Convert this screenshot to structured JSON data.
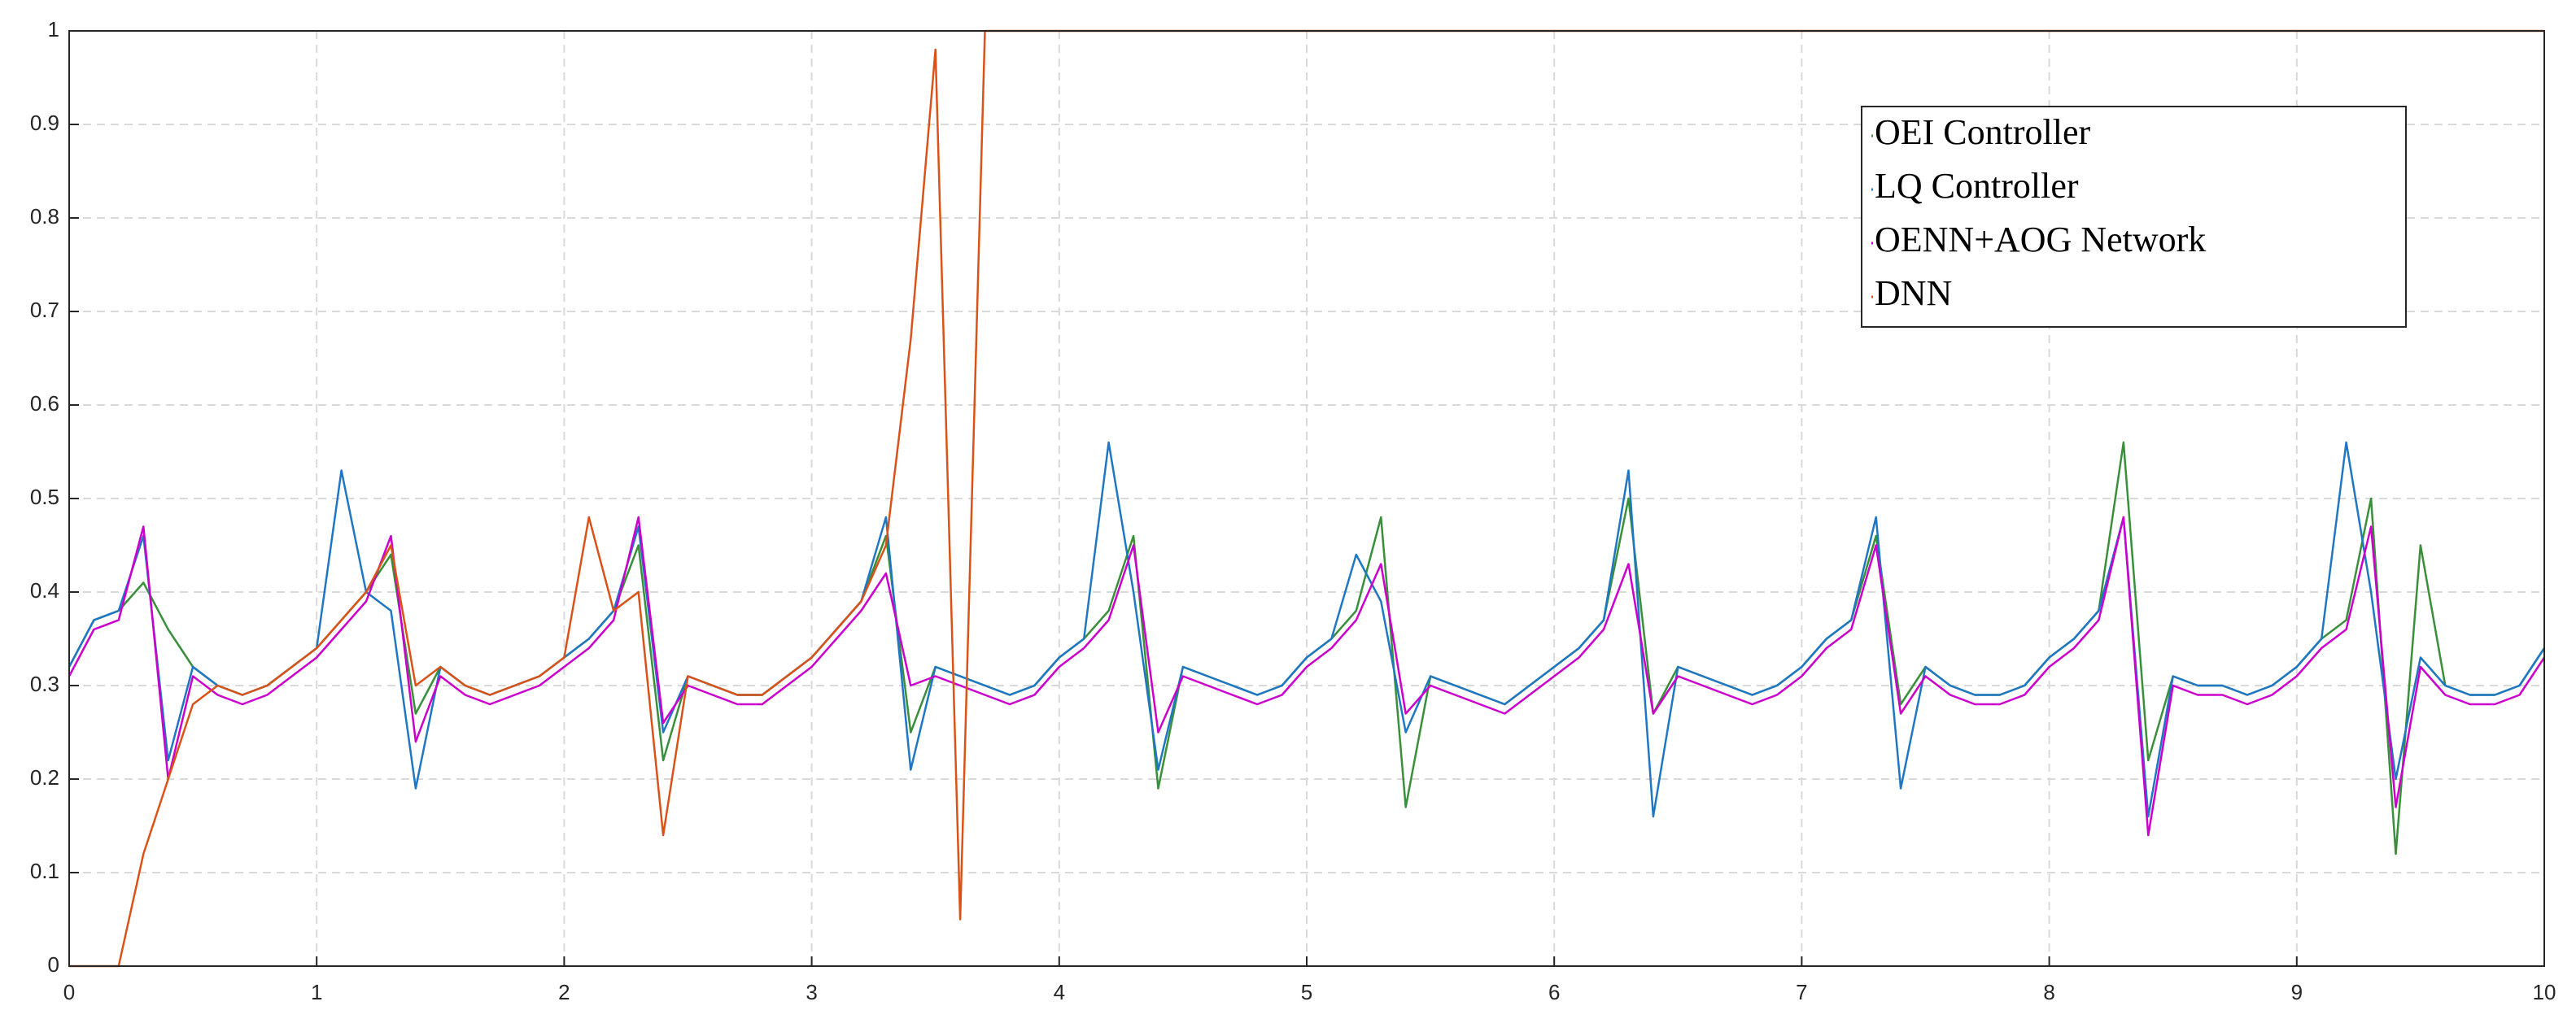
{
  "chart_data": {
    "type": "line",
    "x": [
      0,
      0.1,
      0.2,
      0.3,
      0.4,
      0.5,
      0.6,
      0.7,
      0.8,
      0.9,
      1,
      1.1,
      1.2,
      1.3,
      1.4,
      1.5,
      1.6,
      1.7,
      1.8,
      1.9,
      2,
      2.1,
      2.2,
      2.3,
      2.4,
      2.5,
      2.6,
      2.7,
      2.8,
      2.9,
      3,
      3.1,
      3.2,
      3.3,
      3.4,
      3.5,
      3.6,
      3.7,
      3.8,
      3.9,
      4,
      4.1,
      4.2,
      4.3,
      4.4,
      4.5,
      4.6,
      4.7,
      4.8,
      4.9,
      5,
      5.1,
      5.2,
      5.3,
      5.4,
      5.5,
      5.6,
      5.7,
      5.8,
      5.9,
      6,
      6.1,
      6.2,
      6.3,
      6.4,
      6.5,
      6.6,
      6.7,
      6.8,
      6.9,
      7,
      7.1,
      7.2,
      7.3,
      7.4,
      7.5,
      7.6,
      7.7,
      7.8,
      7.9,
      8,
      8.1,
      8.2,
      8.3,
      8.4,
      8.5,
      8.6,
      8.7,
      8.8,
      8.9,
      9,
      9.1,
      9.2,
      9.3,
      9.4,
      9.5,
      9.6,
      9.7,
      9.8,
      9.9,
      10
    ],
    "series": [
      {
        "name": "OEI Controller",
        "color": "#3a8f3a",
        "values": [
          0.32,
          0.37,
          0.38,
          0.41,
          0.36,
          0.32,
          0.3,
          0.29,
          0.3,
          0.32,
          0.34,
          0.37,
          0.4,
          0.44,
          0.27,
          0.32,
          0.3,
          0.29,
          0.3,
          0.31,
          0.33,
          0.35,
          0.38,
          0.45,
          0.22,
          0.31,
          0.3,
          0.29,
          0.29,
          0.31,
          0.33,
          0.36,
          0.39,
          0.46,
          0.25,
          0.32,
          0.31,
          0.3,
          0.29,
          0.3,
          0.33,
          0.35,
          0.38,
          0.46,
          0.19,
          0.32,
          0.31,
          0.3,
          0.29,
          0.3,
          0.33,
          0.35,
          0.38,
          0.48,
          0.17,
          0.31,
          0.3,
          0.29,
          0.28,
          0.3,
          0.32,
          0.34,
          0.37,
          0.5,
          0.27,
          0.32,
          0.31,
          0.3,
          0.29,
          0.3,
          0.32,
          0.35,
          0.37,
          0.46,
          0.28,
          0.32,
          0.3,
          0.29,
          0.29,
          0.3,
          0.33,
          0.35,
          0.38,
          0.56,
          0.22,
          0.31,
          0.3,
          0.3,
          0.29,
          0.3,
          0.32,
          0.35,
          0.37,
          0.5,
          0.12,
          0.45,
          0.3,
          0.29,
          0.29,
          0.3,
          0.34
        ]
      },
      {
        "name": "LQ Controller",
        "color": "#1f77c4",
        "values": [
          0.32,
          0.37,
          0.38,
          0.46,
          0.22,
          0.32,
          0.3,
          0.29,
          0.3,
          0.32,
          0.34,
          0.53,
          0.4,
          0.38,
          0.19,
          0.32,
          0.3,
          0.29,
          0.3,
          0.31,
          0.33,
          0.35,
          0.38,
          0.47,
          0.25,
          0.31,
          0.3,
          0.29,
          0.29,
          0.31,
          0.33,
          0.36,
          0.39,
          0.48,
          0.21,
          0.32,
          0.31,
          0.3,
          0.29,
          0.3,
          0.33,
          0.35,
          0.56,
          0.4,
          0.21,
          0.32,
          0.31,
          0.3,
          0.29,
          0.3,
          0.33,
          0.35,
          0.44,
          0.39,
          0.25,
          0.31,
          0.3,
          0.29,
          0.28,
          0.3,
          0.32,
          0.34,
          0.37,
          0.53,
          0.16,
          0.32,
          0.31,
          0.3,
          0.29,
          0.3,
          0.32,
          0.35,
          0.37,
          0.48,
          0.19,
          0.32,
          0.3,
          0.29,
          0.29,
          0.3,
          0.33,
          0.35,
          0.38,
          0.48,
          0.16,
          0.31,
          0.3,
          0.3,
          0.29,
          0.3,
          0.32,
          0.35,
          0.56,
          0.4,
          0.2,
          0.33,
          0.3,
          0.29,
          0.29,
          0.3,
          0.34
        ]
      },
      {
        "name": "OENN+AOG Network",
        "color": "#cc00cc",
        "values": [
          0.31,
          0.36,
          0.37,
          0.47,
          0.2,
          0.31,
          0.29,
          0.28,
          0.29,
          0.31,
          0.33,
          0.36,
          0.39,
          0.46,
          0.24,
          0.31,
          0.29,
          0.28,
          0.29,
          0.3,
          0.32,
          0.34,
          0.37,
          0.48,
          0.26,
          0.3,
          0.29,
          0.28,
          0.28,
          0.3,
          0.32,
          0.35,
          0.38,
          0.42,
          0.3,
          0.31,
          0.3,
          0.29,
          0.28,
          0.29,
          0.32,
          0.34,
          0.37,
          0.45,
          0.25,
          0.31,
          0.3,
          0.29,
          0.28,
          0.29,
          0.32,
          0.34,
          0.37,
          0.43,
          0.27,
          0.3,
          0.29,
          0.28,
          0.27,
          0.29,
          0.31,
          0.33,
          0.36,
          0.43,
          0.27,
          0.31,
          0.3,
          0.29,
          0.28,
          0.29,
          0.31,
          0.34,
          0.36,
          0.45,
          0.27,
          0.31,
          0.29,
          0.28,
          0.28,
          0.29,
          0.32,
          0.34,
          0.37,
          0.48,
          0.14,
          0.3,
          0.29,
          0.29,
          0.28,
          0.29,
          0.31,
          0.34,
          0.36,
          0.47,
          0.17,
          0.32,
          0.29,
          0.28,
          0.28,
          0.29,
          0.33
        ]
      },
      {
        "name": "DNN",
        "color": "#d95319",
        "values": [
          0,
          0,
          0,
          0.12,
          0.2,
          0.28,
          0.3,
          0.29,
          0.3,
          0.32,
          0.34,
          0.37,
          0.4,
          0.45,
          0.3,
          0.32,
          0.3,
          0.29,
          0.3,
          0.31,
          0.33,
          0.48,
          0.38,
          0.4,
          0.14,
          0.31,
          0.3,
          0.29,
          0.29,
          0.31,
          0.33,
          0.36,
          0.39,
          0.45,
          0.67,
          0.98,
          0.05,
          1,
          1,
          1,
          1,
          1,
          1,
          1,
          1,
          1,
          1,
          1,
          1,
          1,
          1,
          1,
          1,
          1,
          1,
          1,
          1,
          1,
          1,
          1,
          1,
          1,
          1,
          1,
          1,
          1,
          1,
          1,
          1,
          1,
          1,
          1,
          1,
          1,
          1,
          1,
          1,
          1,
          1,
          1,
          1,
          1,
          1,
          1,
          1,
          1,
          1,
          1,
          1,
          1,
          1,
          1,
          1,
          1,
          1,
          1,
          1,
          1,
          1,
          1,
          1
        ]
      }
    ],
    "xlim": [
      0,
      10
    ],
    "xticks": [
      0,
      1,
      2,
      3,
      4,
      5,
      6,
      7,
      8,
      9,
      10
    ],
    "ylim": [
      0,
      1
    ],
    "yticks": [
      0,
      0.1,
      0.2,
      0.3,
      0.4,
      0.5,
      0.6,
      0.7,
      0.8,
      0.9,
      1
    ],
    "grid": true,
    "legend": "upper right"
  }
}
